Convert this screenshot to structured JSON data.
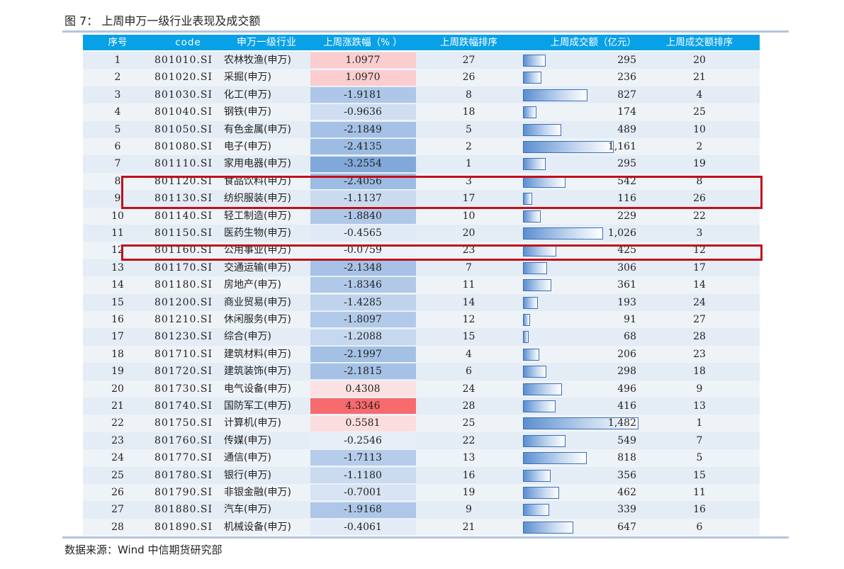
{
  "title": "图 7：  上周申万一级行业表现及成交额",
  "source": "数据来源：Wind    中信期货研究部",
  "colors": {
    "header_bg": "#08a1e7",
    "highlight": "#c0101b",
    "rise": "#f76a6e",
    "fall": "#5b8fd1"
  },
  "chart_data": {
    "type": "table",
    "columns": [
      "序号",
      "code",
      "申万一级行业",
      "上周涨跌幅（% ）",
      "上周跌幅排序",
      "上周成交额（亿元）",
      "上周成交额排序"
    ],
    "rows": [
      {
        "idx": "1",
        "code": "801010.SI",
        "name": "农林牧渔(申万)",
        "chg": "1.0977",
        "rank": "27",
        "vol": "295",
        "vrank": "20"
      },
      {
        "idx": "2",
        "code": "801020.SI",
        "name": "采掘(申万)",
        "chg": "1.0970",
        "rank": "26",
        "vol": "236",
        "vrank": "21"
      },
      {
        "idx": "3",
        "code": "801030.SI",
        "name": "化工(申万)",
        "chg": "-1.9181",
        "rank": "8",
        "vol": "827",
        "vrank": "4"
      },
      {
        "idx": "4",
        "code": "801040.SI",
        "name": "钢铁(申万)",
        "chg": "-0.9636",
        "rank": "18",
        "vol": "174",
        "vrank": "25"
      },
      {
        "idx": "5",
        "code": "801050.SI",
        "name": "有色金属(申万)",
        "chg": "-2.1849",
        "rank": "5",
        "vol": "489",
        "vrank": "10"
      },
      {
        "idx": "6",
        "code": "801080.SI",
        "name": "电子(申万)",
        "chg": "-2.4135",
        "rank": "2",
        "vol": "1,161",
        "vrank": "2"
      },
      {
        "idx": "7",
        "code": "801110.SI",
        "name": "家用电器(申万)",
        "chg": "-3.2554",
        "rank": "1",
        "vol": "295",
        "vrank": "19"
      },
      {
        "idx": "8",
        "code": "801120.SI",
        "name": "食品饮料(申万)",
        "chg": "-2.4056",
        "rank": "3",
        "vol": "542",
        "vrank": "8"
      },
      {
        "idx": "9",
        "code": "801130.SI",
        "name": "纺织服装(申万)",
        "chg": "-1.1137",
        "rank": "17",
        "vol": "116",
        "vrank": "26"
      },
      {
        "idx": "10",
        "code": "801140.SI",
        "name": "轻工制造(申万)",
        "chg": "-1.8840",
        "rank": "10",
        "vol": "229",
        "vrank": "22"
      },
      {
        "idx": "11",
        "code": "801150.SI",
        "name": "医药生物(申万)",
        "chg": "-0.4565",
        "rank": "20",
        "vol": "1,026",
        "vrank": "3"
      },
      {
        "idx": "12",
        "code": "801160.SI",
        "name": "公用事业(申万)",
        "chg": "-0.0759",
        "rank": "23",
        "vol": "425",
        "vrank": "12"
      },
      {
        "idx": "13",
        "code": "801170.SI",
        "name": "交通运输(申万)",
        "chg": "-2.1348",
        "rank": "7",
        "vol": "306",
        "vrank": "17"
      },
      {
        "idx": "14",
        "code": "801180.SI",
        "name": "房地产(申万)",
        "chg": "-1.8346",
        "rank": "11",
        "vol": "361",
        "vrank": "14"
      },
      {
        "idx": "15",
        "code": "801200.SI",
        "name": "商业贸易(申万)",
        "chg": "-1.4285",
        "rank": "14",
        "vol": "193",
        "vrank": "24"
      },
      {
        "idx": "16",
        "code": "801210.SI",
        "name": "休闲服务(申万)",
        "chg": "-1.8097",
        "rank": "12",
        "vol": "91",
        "vrank": "27"
      },
      {
        "idx": "17",
        "code": "801230.SI",
        "name": "综合(申万)",
        "chg": "-1.2088",
        "rank": "15",
        "vol": "68",
        "vrank": "28"
      },
      {
        "idx": "18",
        "code": "801710.SI",
        "name": "建筑材料(申万)",
        "chg": "-2.1997",
        "rank": "4",
        "vol": "206",
        "vrank": "23"
      },
      {
        "idx": "19",
        "code": "801720.SI",
        "name": "建筑装饰(申万)",
        "chg": "-2.1815",
        "rank": "6",
        "vol": "298",
        "vrank": "18"
      },
      {
        "idx": "20",
        "code": "801730.SI",
        "name": "电气设备(申万)",
        "chg": "0.4308",
        "rank": "24",
        "vol": "496",
        "vrank": "9"
      },
      {
        "idx": "21",
        "code": "801740.SI",
        "name": "国防军工(申万)",
        "chg": "4.3346",
        "rank": "28",
        "vol": "416",
        "vrank": "13"
      },
      {
        "idx": "22",
        "code": "801750.SI",
        "name": "计算机(申万)",
        "chg": "0.5581",
        "rank": "25",
        "vol": "1,482",
        "vrank": "1"
      },
      {
        "idx": "23",
        "code": "801760.SI",
        "name": "传媒(申万)",
        "chg": "-0.2546",
        "rank": "22",
        "vol": "549",
        "vrank": "7"
      },
      {
        "idx": "24",
        "code": "801770.SI",
        "name": "通信(申万)",
        "chg": "-1.7113",
        "rank": "13",
        "vol": "818",
        "vrank": "5"
      },
      {
        "idx": "25",
        "code": "801780.SI",
        "name": "银行(申万)",
        "chg": "-1.1180",
        "rank": "16",
        "vol": "356",
        "vrank": "15"
      },
      {
        "idx": "26",
        "code": "801790.SI",
        "name": "非银金融(申万)",
        "chg": "-0.7001",
        "rank": "19",
        "vol": "462",
        "vrank": "11"
      },
      {
        "idx": "27",
        "code": "801880.SI",
        "name": "汽车(申万)",
        "chg": "-1.9168",
        "rank": "9",
        "vol": "339",
        "vrank": "16"
      },
      {
        "idx": "28",
        "code": "801890.SI",
        "name": "机械设备(申万)",
        "chg": "-0.4061",
        "rank": "21",
        "vol": "647",
        "vrank": "6"
      }
    ],
    "highlighted_rows": [
      "8",
      "9",
      "12"
    ]
  }
}
